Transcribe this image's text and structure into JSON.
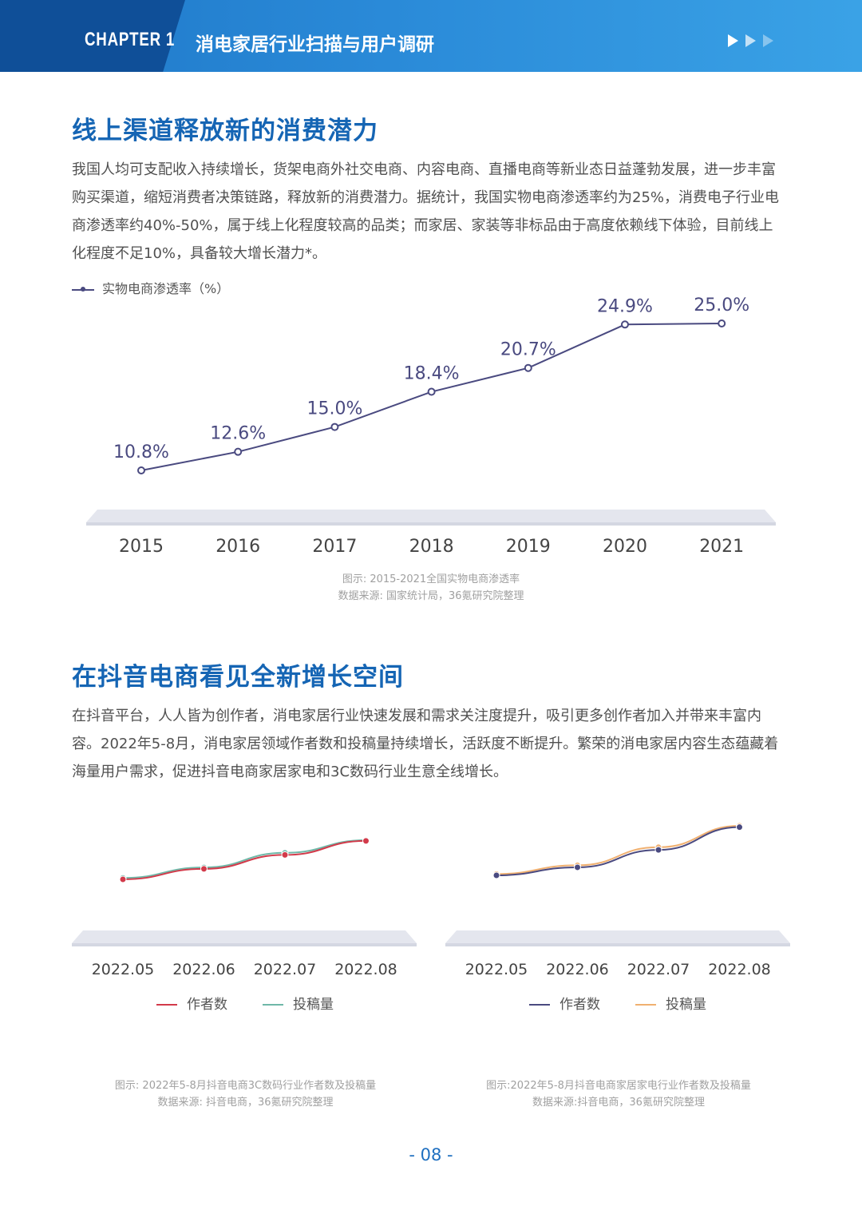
{
  "header": {
    "chapter": "CHAPTER 1",
    "title": "消电家居行业扫描与用户调研"
  },
  "colors": {
    "header_blue": "#1f78c8",
    "title_blue": "#1565b4",
    "line_purple": "#4a4a80",
    "red": "#d23a4a",
    "teal": "#6fb8a8",
    "orange": "#f0b070"
  },
  "section1": {
    "title": "线上渠道释放新的消费潜力",
    "paragraph": [
      "我国人均可支配收入持续增长，货架电商外社交电商、内容电商、直播电商等新业态日益蓬勃发展，进一步丰富",
      "购买渠道，缩短消费者决策链路，释放新的消费潜力。据统计，我国实物电商渗透率约为25%，消费电子行业电",
      "商渗透率约40%-50%，属于线上化程度较高的品类；而家居、家装等非标品由于高度依赖线下体验，目前线上",
      "化程度不足10%，具备较大增长潜力*。"
    ],
    "caption_title": "图示: 2015-2021全国实物电商渗透率",
    "caption_source": "数据来源: 国家统计局，36氪研究院整理"
  },
  "section2": {
    "title": "在抖音电商看见全新增长空间",
    "paragraph": [
      "在抖音平台，人人皆为创作者，消电家居行业快速发展和需求关注度提升，吸引更多创作者加入并带来丰富内",
      "容。2022年5-8月，消电家居领域作者数和投稿量持续增长，活跃度不断提升。繁荣的消电家居内容生态蕴藏着",
      "海量用户需求，促进抖音电商家居家电和3C数码行业生意全线增长。"
    ],
    "left_caption_title": "图示: 2022年5-8月抖音电商3C数码行业作者数及投稿量",
    "left_caption_source": "数据来源: 抖音电商，36氪研究院整理",
    "right_caption_title": "图示:2022年5-8月抖音电商家居家电行业作者数及投稿量",
    "right_caption_source": "数据来源:抖音电商，36氪研究院整理"
  },
  "page_number": "- 08 -",
  "chart_data": [
    {
      "type": "line",
      "categories": [
        "2015",
        "2016",
        "2017",
        "2018",
        "2019",
        "2020",
        "2021"
      ],
      "series": [
        {
          "name": "实物电商渗透率（%）",
          "values": [
            10.8,
            12.6,
            15.0,
            18.4,
            20.7,
            24.9,
            25.0
          ],
          "color": "#4a4a80"
        }
      ],
      "labels": [
        "10.8%",
        "12.6%",
        "15.0%",
        "18.4%",
        "20.7%",
        "24.9%",
        "25.0%"
      ],
      "ylim": [
        0,
        27
      ],
      "grid": false,
      "legend": "top-left"
    },
    {
      "type": "line",
      "categories": [
        "2022.05",
        "2022.06",
        "2022.07",
        "2022.08"
      ],
      "series": [
        {
          "name": "作者数",
          "values": [
            1.0,
            1.15,
            1.35,
            1.55
          ],
          "color": "#d23a4a"
        },
        {
          "name": "投稿量",
          "values": [
            1.02,
            1.17,
            1.38,
            1.56
          ],
          "color": "#6fb8a8"
        }
      ],
      "grid": false,
      "legend": "bottom-center"
    },
    {
      "type": "line",
      "categories": [
        "2022.05",
        "2022.06",
        "2022.07",
        "2022.08"
      ],
      "series": [
        {
          "name": "作者数",
          "values": [
            1.0,
            1.12,
            1.38,
            1.72
          ],
          "color": "#4a4a80"
        },
        {
          "name": "投稿量",
          "values": [
            1.02,
            1.15,
            1.42,
            1.74
          ],
          "color": "#f0b070"
        }
      ],
      "grid": false,
      "legend": "bottom-center"
    }
  ]
}
